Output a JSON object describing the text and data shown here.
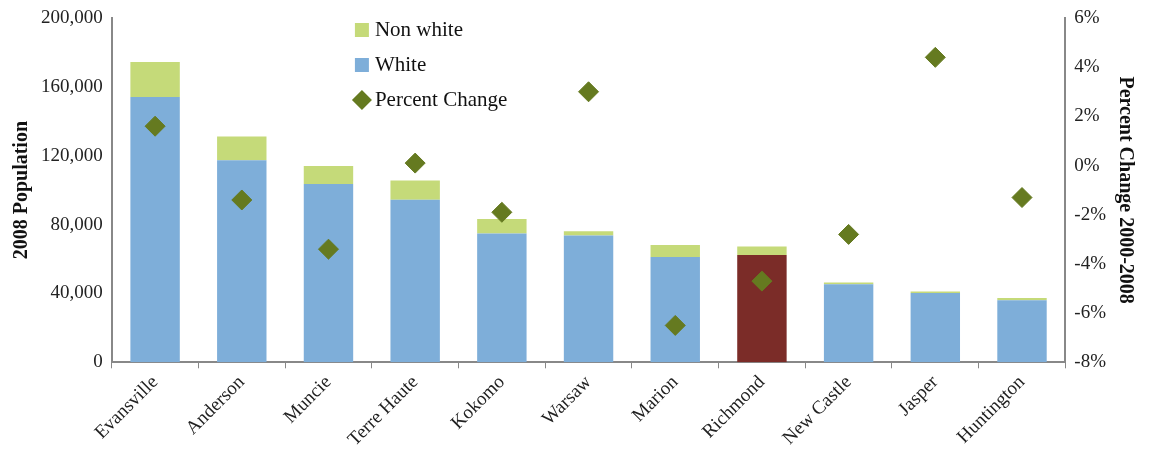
{
  "chart_data": {
    "type": "bar",
    "stacked": true,
    "categories": [
      "Evansville",
      "Anderson",
      "Muncie",
      "Terre Haute",
      "Kokomo",
      "Warsaw",
      "Marion",
      "Richmond",
      "New Castle",
      "Jasper",
      "Huntington"
    ],
    "series": [
      {
        "name": "White",
        "color": "#7eaed9",
        "colors": [
          "#7eaed9",
          "#7eaed9",
          "#7eaed9",
          "#7eaed9",
          "#7eaed9",
          "#7eaed9",
          "#7eaed9",
          "#7b2c28",
          "#7eaed9",
          "#7eaed9",
          "#7eaed9"
        ],
        "values": [
          154100,
          117400,
          103600,
          94400,
          74800,
          73600,
          61200,
          62300,
          45400,
          40200,
          36100
        ]
      },
      {
        "name": "Non white",
        "color": "#c5da79",
        "values": [
          20300,
          13700,
          10500,
          11200,
          8500,
          2500,
          7000,
          5000,
          1000,
          900,
          1300
        ]
      },
      {
        "name": "Percent Change",
        "type": "scatter",
        "axis": "y2",
        "color": "#657a20",
        "marker": "diamond",
        "x": [
          "Evansville",
          "Anderson",
          "Muncie",
          "Terre Haute",
          "Kokomo",
          "Warsaw",
          "Marion",
          "Richmond",
          "New Castle",
          "Jasper",
          "Huntington"
        ],
        "values": [
          1.6,
          -1.4,
          -3.4,
          0.1,
          -1.9,
          3.0,
          -6.5,
          -4.7,
          -2.8,
          4.4,
          -1.3
        ]
      }
    ],
    "ylabel": "2008 Population",
    "y2label": "Percent Change 2000-2008",
    "ylim": [
      0,
      200000
    ],
    "yticks": [
      0,
      {
        "value": 40000,
        "label": "40,000"
      },
      {
        "value": 80000,
        "label": "80,000"
      },
      {
        "value": 120000,
        "label": "120,000"
      },
      {
        "value": 160000,
        "label": "160,000"
      },
      {
        "value": 200000,
        "label": "200,000"
      }
    ],
    "y2lim": [
      -8,
      6
    ],
    "y2ticks": [
      {
        "value": -8,
        "label": "-8%"
      },
      {
        "value": -6,
        "label": "-6%"
      },
      {
        "value": -4,
        "label": "-4%"
      },
      {
        "value": -2,
        "label": "-2%"
      },
      {
        "value": 0,
        "label": "0%"
      },
      {
        "value": 2,
        "label": "2%"
      },
      {
        "value": 4,
        "label": "4%"
      },
      {
        "value": 6,
        "label": "6%"
      }
    ],
    "grid": false,
    "legend": "top"
  }
}
